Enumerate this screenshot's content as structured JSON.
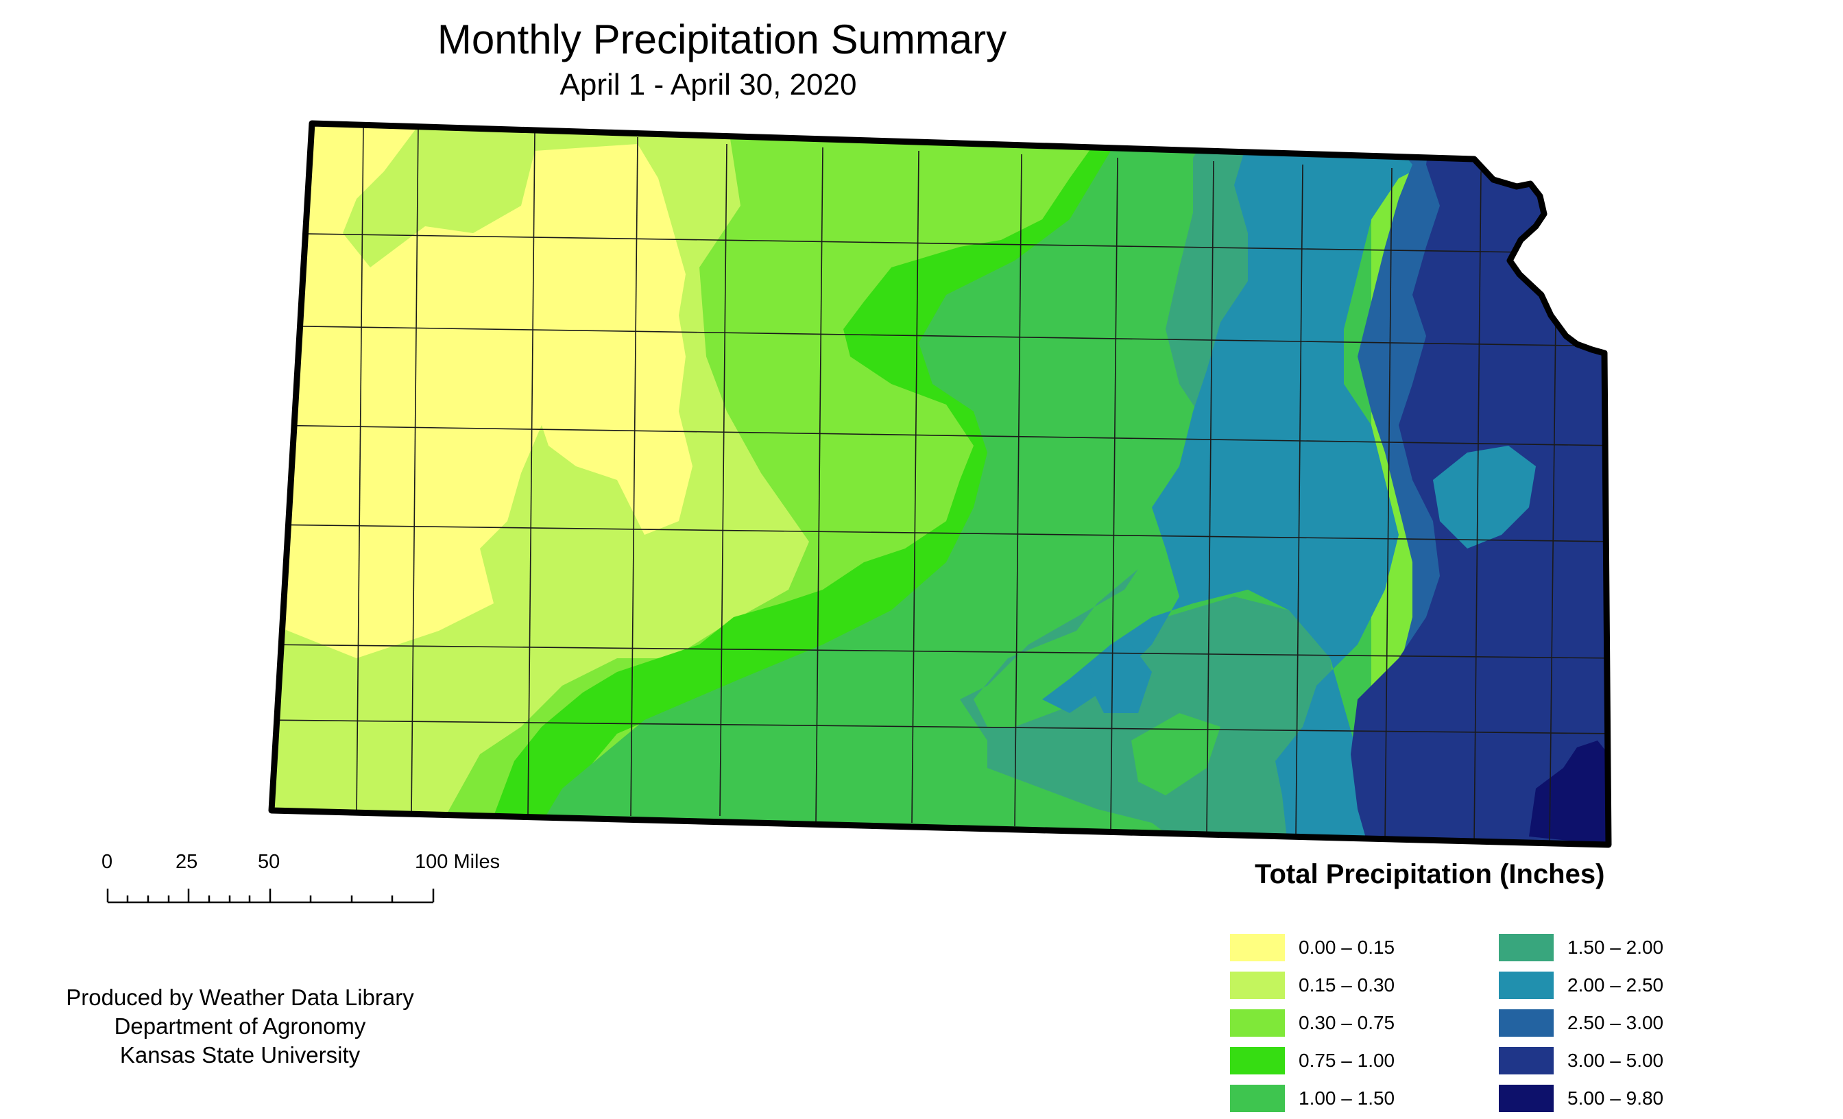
{
  "title": "Monthly Precipitation Summary",
  "subtitle": "April 1 - April 30, 2020",
  "map": {
    "region": "Kansas",
    "boundaries": "county lines",
    "color_ramp": "precipitation classes (see legend)"
  },
  "legend": {
    "title": "Total Precipitation (Inches)",
    "classes": [
      {
        "label": "0.00 – 0.15",
        "color": "#ffff80"
      },
      {
        "label": "0.15 – 0.30",
        "color": "#c3f55d"
      },
      {
        "label": "0.30 – 0.75",
        "color": "#7fe839"
      },
      {
        "label": "0.75 – 1.00",
        "color": "#36dd12"
      },
      {
        "label": "1.00 – 1.50",
        "color": "#3ec54f"
      },
      {
        "label": "1.50 – 2.00",
        "color": "#38a67d"
      },
      {
        "label": "2.00 – 2.50",
        "color": "#2190ae"
      },
      {
        "label": "2.50 – 3.00",
        "color": "#2363a1"
      },
      {
        "label": "3.00 – 5.00",
        "color": "#1f3689"
      },
      {
        "label": "5.00 – 9.80",
        "color": "#0d116b"
      }
    ]
  },
  "scale_bar": {
    "ticks": [
      "0",
      "25",
      "50",
      "100 Miles"
    ]
  },
  "credits": {
    "line1": "Produced by Weather Data Library",
    "line2": "Department of Agronomy",
    "line3": "Kansas State University"
  }
}
